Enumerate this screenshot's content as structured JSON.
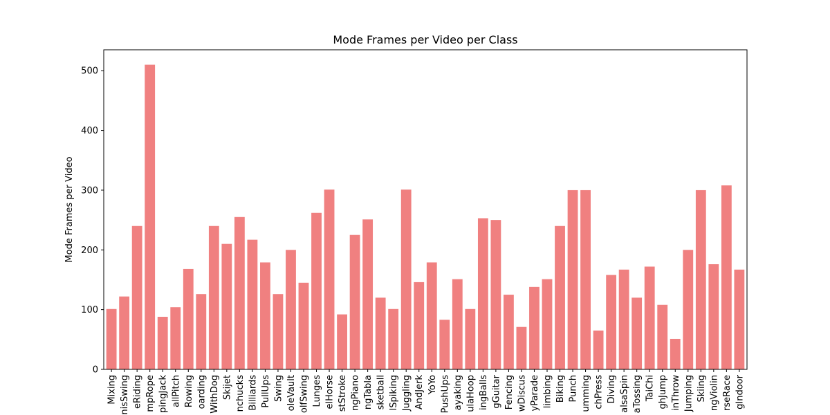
{
  "chart_data": {
    "type": "bar",
    "title": "Mode Frames per Video per Class",
    "xlabel": "",
    "ylabel": "Mode Frames per Video",
    "ylim": [
      0,
      535
    ],
    "yticks": [
      0,
      100,
      200,
      300,
      400,
      500
    ],
    "bar_color": "#f08080",
    "grid": false,
    "categories": [
      "Mixing",
      "nisSwing",
      "eRiding",
      "mpRope",
      "pingJack",
      "allPitch",
      "Rowing",
      "oarding",
      "WithDog",
      "Skijet",
      "nchucks",
      "Billiards",
      "PullUps",
      "Swing",
      "oleVault",
      "olfSwing",
      "Lunges",
      "elHorse",
      "stStroke",
      "ngPiano",
      "ngTabla",
      "sketball",
      "lSpiking",
      "Juggling",
      "AndJerk",
      "YoYo",
      "PushUps",
      "ayaking",
      "ulaHoop",
      "ingBalls",
      "gGuitar",
      "Fencing",
      "wDiscus",
      "yParade",
      "limbing",
      "Biking",
      "Punch",
      "umming",
      "chPress",
      "Diving",
      "alsaSpin",
      "aTossing",
      "TaiChi",
      "ghJump",
      "inThrow",
      "Jumping",
      "Skiing",
      "ngViolin",
      "rseRace",
      "gIndoor"
    ],
    "values": [
      101,
      122,
      240,
      510,
      88,
      104,
      168,
      126,
      240,
      210,
      255,
      217,
      179,
      126,
      200,
      145,
      262,
      301,
      92,
      225,
      251,
      120,
      101,
      301,
      146,
      179,
      83,
      151,
      101,
      253,
      250,
      125,
      71,
      138,
      151,
      240,
      300,
      300,
      65,
      158,
      167,
      120,
      172,
      108,
      51,
      200,
      300,
      176,
      308,
      167
    ]
  }
}
